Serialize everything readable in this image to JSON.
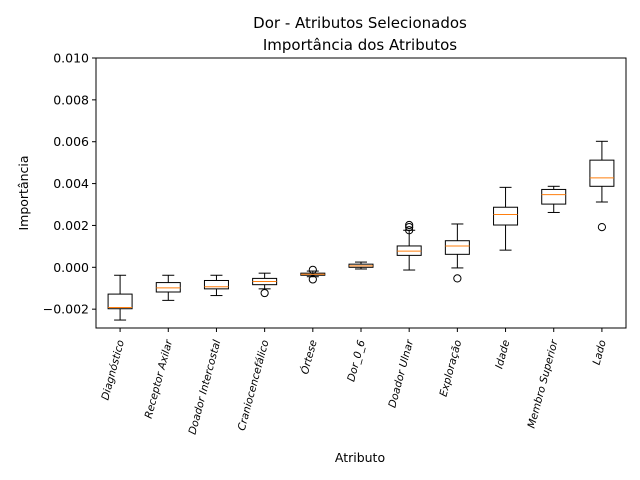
{
  "chart_data": {
    "type": "box",
    "title": [
      "Dor - Atributos Selecionados",
      "Importância dos Atributos"
    ],
    "xlabel": "Atributo",
    "ylabel": "Importância",
    "ylim": [
      -0.0029,
      0.01
    ],
    "yticks": [
      -0.002,
      0.0,
      0.002,
      0.004,
      0.006,
      0.008,
      0.01
    ],
    "ytick_labels": [
      "−0.002",
      "0.000",
      "0.002",
      "0.004",
      "0.006",
      "0.008",
      "0.010"
    ],
    "grid": false,
    "median_color": "#ff7f0e",
    "box_color": "#000000",
    "categories": [
      "Diagnóstico",
      "Receptor Axilar",
      "Doador Intercostal",
      "Craniocencefálico",
      "Órtese",
      "Dor_0_6",
      "Doador Ulnar",
      "Exploração",
      "Idade",
      "Membro Superior",
      "Lado"
    ],
    "boxes": [
      {
        "whisker_low": -0.00252,
        "q1": -0.00198,
        "median": -0.00192,
        "q3": -0.00128,
        "whisker_high": -0.00038,
        "outliers": []
      },
      {
        "whisker_low": -0.00158,
        "q1": -0.00118,
        "median": -0.00098,
        "q3": -0.00073,
        "whisker_high": -0.00038,
        "outliers": []
      },
      {
        "whisker_low": -0.00135,
        "q1": -0.00103,
        "median": -0.00093,
        "q3": -0.00063,
        "whisker_high": -0.00038,
        "outliers": []
      },
      {
        "whisker_low": -0.00103,
        "q1": -0.00083,
        "median": -0.00068,
        "q3": -0.00053,
        "whisker_high": -0.00028,
        "outliers": [
          -0.00123
        ]
      },
      {
        "whisker_low": -0.00045,
        "q1": -0.00038,
        "median": -0.00033,
        "q3": -0.00028,
        "whisker_high": -0.00018,
        "outliers": [
          -0.00058,
          -0.00012
        ]
      },
      {
        "whisker_low": -8e-05,
        "q1": 0.0,
        "median": 7e-05,
        "q3": 0.00015,
        "whisker_high": 0.00025,
        "outliers": []
      },
      {
        "whisker_low": -0.00013,
        "q1": 0.00057,
        "median": 0.00077,
        "q3": 0.00102,
        "whisker_high": 0.00177,
        "outliers": [
          0.00177,
          0.00192,
          0.00202
        ]
      },
      {
        "whisker_low": -3e-05,
        "q1": 0.00062,
        "median": 0.00102,
        "q3": 0.00127,
        "whisker_high": 0.00207,
        "outliers": [
          -0.00053
        ]
      },
      {
        "whisker_low": 0.00082,
        "q1": 0.00202,
        "median": 0.00252,
        "q3": 0.00287,
        "whisker_high": 0.00382,
        "outliers": []
      },
      {
        "whisker_low": 0.00262,
        "q1": 0.00302,
        "median": 0.00347,
        "q3": 0.00372,
        "whisker_high": 0.00387,
        "outliers": []
      },
      {
        "whisker_low": 0.00312,
        "q1": 0.00387,
        "median": 0.00427,
        "q3": 0.00512,
        "whisker_high": 0.00602,
        "outliers": [
          0.00192
        ]
      }
    ]
  }
}
